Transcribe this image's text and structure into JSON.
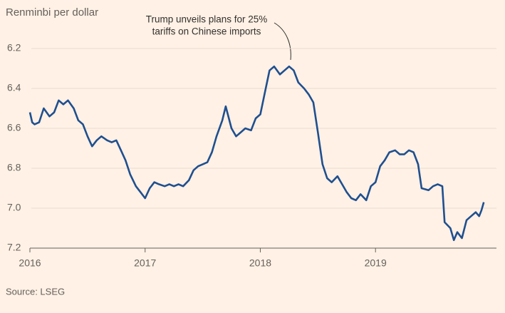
{
  "chart_data": {
    "type": "line",
    "y_axis_title": "Renminbi per dollar",
    "annotation": [
      "Trump unveils plans for 25%",
      "tariffs on Chinese imports"
    ],
    "source": "Source: LSEG",
    "color": "#1f4f8f",
    "y_inverted": true,
    "grid": true,
    "xlim": [
      2016,
      2020.05
    ],
    "xticks": [
      2016,
      2017,
      2018,
      2019
    ],
    "ylim": [
      6.2,
      7.2
    ],
    "yticks": [
      6.2,
      6.4,
      6.6,
      {
        "value": 6.8,
        "label": "6.8"
      },
      {
        "value": 7.0,
        "label": "7.0"
      },
      7.2
    ],
    "x": [
      2016.0,
      2016.02,
      2016.04,
      2016.08,
      2016.12,
      2016.17,
      2016.21,
      2016.25,
      2016.29,
      2016.33,
      2016.38,
      2016.42,
      2016.46,
      2016.5,
      2016.54,
      2016.58,
      2016.62,
      2016.67,
      2016.71,
      2016.75,
      2016.79,
      2016.83,
      2016.87,
      2016.92,
      2016.96,
      2017.0,
      2017.04,
      2017.08,
      2017.12,
      2017.17,
      2017.21,
      2017.25,
      2017.29,
      2017.33,
      2017.38,
      2017.42,
      2017.46,
      2017.5,
      2017.54,
      2017.58,
      2017.62,
      2017.67,
      2017.7,
      2017.75,
      2017.79,
      2017.83,
      2017.87,
      2017.92,
      2017.96,
      2018.0,
      2018.04,
      2018.08,
      2018.12,
      2018.17,
      2018.21,
      2018.25,
      2018.29,
      2018.33,
      2018.38,
      2018.42,
      2018.46,
      2018.5,
      2018.54,
      2018.58,
      2018.62,
      2018.67,
      2018.71,
      2018.75,
      2018.79,
      2018.83,
      2018.87,
      2018.92,
      2018.96,
      2019.0,
      2019.04,
      2019.08,
      2019.12,
      2019.17,
      2019.21,
      2019.25,
      2019.29,
      2019.33,
      2019.37,
      2019.4,
      2019.46,
      2019.5,
      2019.54,
      2019.58,
      2019.6,
      2019.65,
      2019.68,
      2019.71,
      2019.75,
      2019.79,
      2019.83,
      2019.87,
      2019.9,
      2019.92,
      2019.94
    ],
    "values": [
      6.52,
      6.57,
      6.58,
      6.57,
      6.5,
      6.54,
      6.52,
      6.46,
      6.48,
      6.46,
      6.5,
      6.56,
      6.58,
      6.64,
      6.69,
      6.66,
      6.64,
      6.66,
      6.67,
      6.66,
      6.71,
      6.76,
      6.83,
      6.89,
      6.92,
      6.95,
      6.9,
      6.87,
      6.88,
      6.89,
      6.88,
      6.89,
      6.88,
      6.89,
      6.86,
      6.81,
      6.79,
      6.78,
      6.77,
      6.72,
      6.64,
      6.56,
      6.49,
      6.6,
      6.64,
      6.62,
      6.6,
      6.61,
      6.55,
      6.53,
      6.42,
      6.31,
      6.29,
      6.33,
      6.31,
      6.29,
      6.31,
      6.37,
      6.4,
      6.43,
      6.47,
      6.62,
      6.78,
      6.85,
      6.87,
      6.84,
      6.88,
      6.92,
      6.95,
      6.96,
      6.93,
      6.96,
      6.89,
      6.87,
      6.79,
      6.76,
      6.72,
      6.71,
      6.73,
      6.73,
      6.71,
      6.72,
      6.78,
      6.9,
      6.91,
      6.89,
      6.88,
      6.89,
      7.07,
      7.1,
      7.16,
      7.12,
      7.15,
      7.06,
      7.04,
      7.02,
      7.04,
      7.01,
      6.97
    ]
  }
}
